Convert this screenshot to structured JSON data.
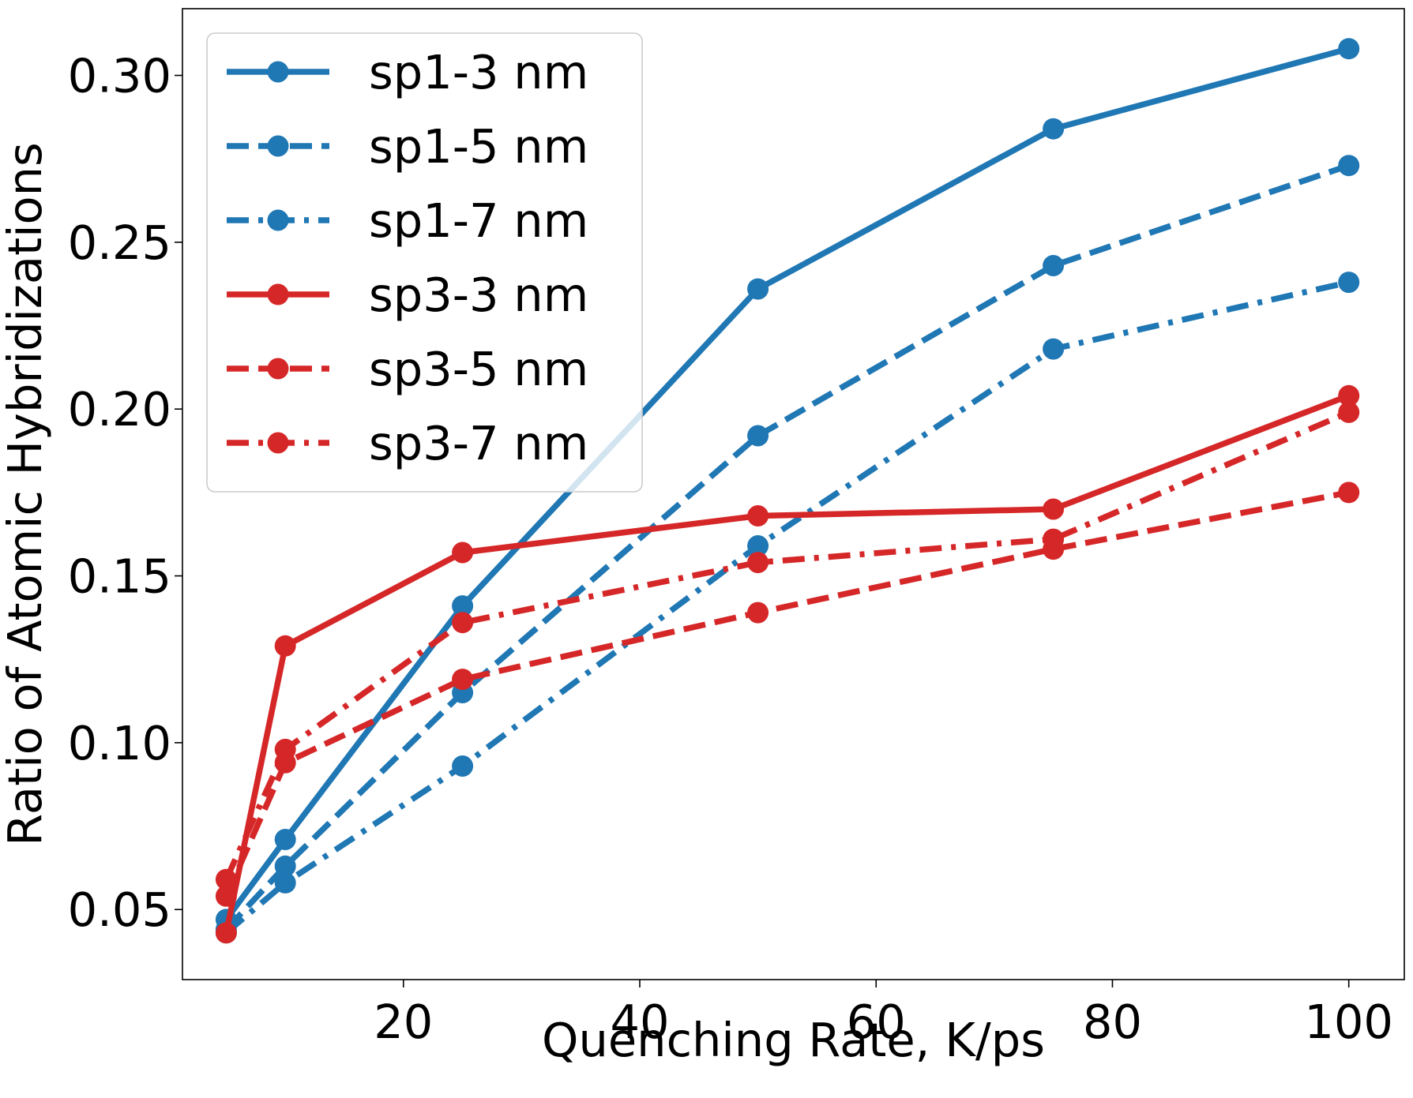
{
  "chart_data": {
    "type": "line",
    "title": "",
    "xlabel": "Quenching Rate, K/ps",
    "ylabel": "Ratio of Atomic Hybridizations",
    "xlim": [
      1.3,
      104.7
    ],
    "ylim": [
      0.029,
      0.32
    ],
    "xticks": [
      20,
      40,
      60,
      80,
      100
    ],
    "yticks": [
      0.05,
      0.1,
      0.15,
      0.2,
      0.25,
      0.3
    ],
    "xtick_labels": [
      "20",
      "40",
      "60",
      "80",
      "100"
    ],
    "ytick_labels": [
      "0.05",
      "0.10",
      "0.15",
      "0.20",
      "0.25",
      "0.30"
    ],
    "grid": false,
    "legend_position": "top-left",
    "x": [
      5,
      10,
      25,
      50,
      75,
      100
    ],
    "series": [
      {
        "name": "sp1-3 nm",
        "color": "#1f77b4",
        "linestyle": "solid",
        "values": [
          0.047,
          0.071,
          0.141,
          0.236,
          0.284,
          0.308
        ]
      },
      {
        "name": "sp1-5 nm",
        "color": "#1f77b4",
        "linestyle": "dashed",
        "values": [
          0.044,
          0.063,
          0.115,
          0.192,
          0.243,
          0.273
        ]
      },
      {
        "name": "sp1-7 nm",
        "color": "#1f77b4",
        "linestyle": "dashdot",
        "values": [
          0.043,
          0.058,
          0.093,
          0.159,
          0.218,
          0.238
        ]
      },
      {
        "name": "sp3-3 nm",
        "color": "#d62728",
        "linestyle": "solid",
        "values": [
          0.043,
          0.129,
          0.157,
          0.168,
          0.17,
          0.204
        ]
      },
      {
        "name": "sp3-5 nm",
        "color": "#d62728",
        "linestyle": "dashed",
        "values": [
          0.054,
          0.094,
          0.119,
          0.139,
          0.158,
          0.175
        ]
      },
      {
        "name": "sp3-7 nm",
        "color": "#d62728",
        "linestyle": "dashdot",
        "values": [
          0.059,
          0.098,
          0.136,
          0.154,
          0.161,
          0.199
        ]
      }
    ]
  }
}
